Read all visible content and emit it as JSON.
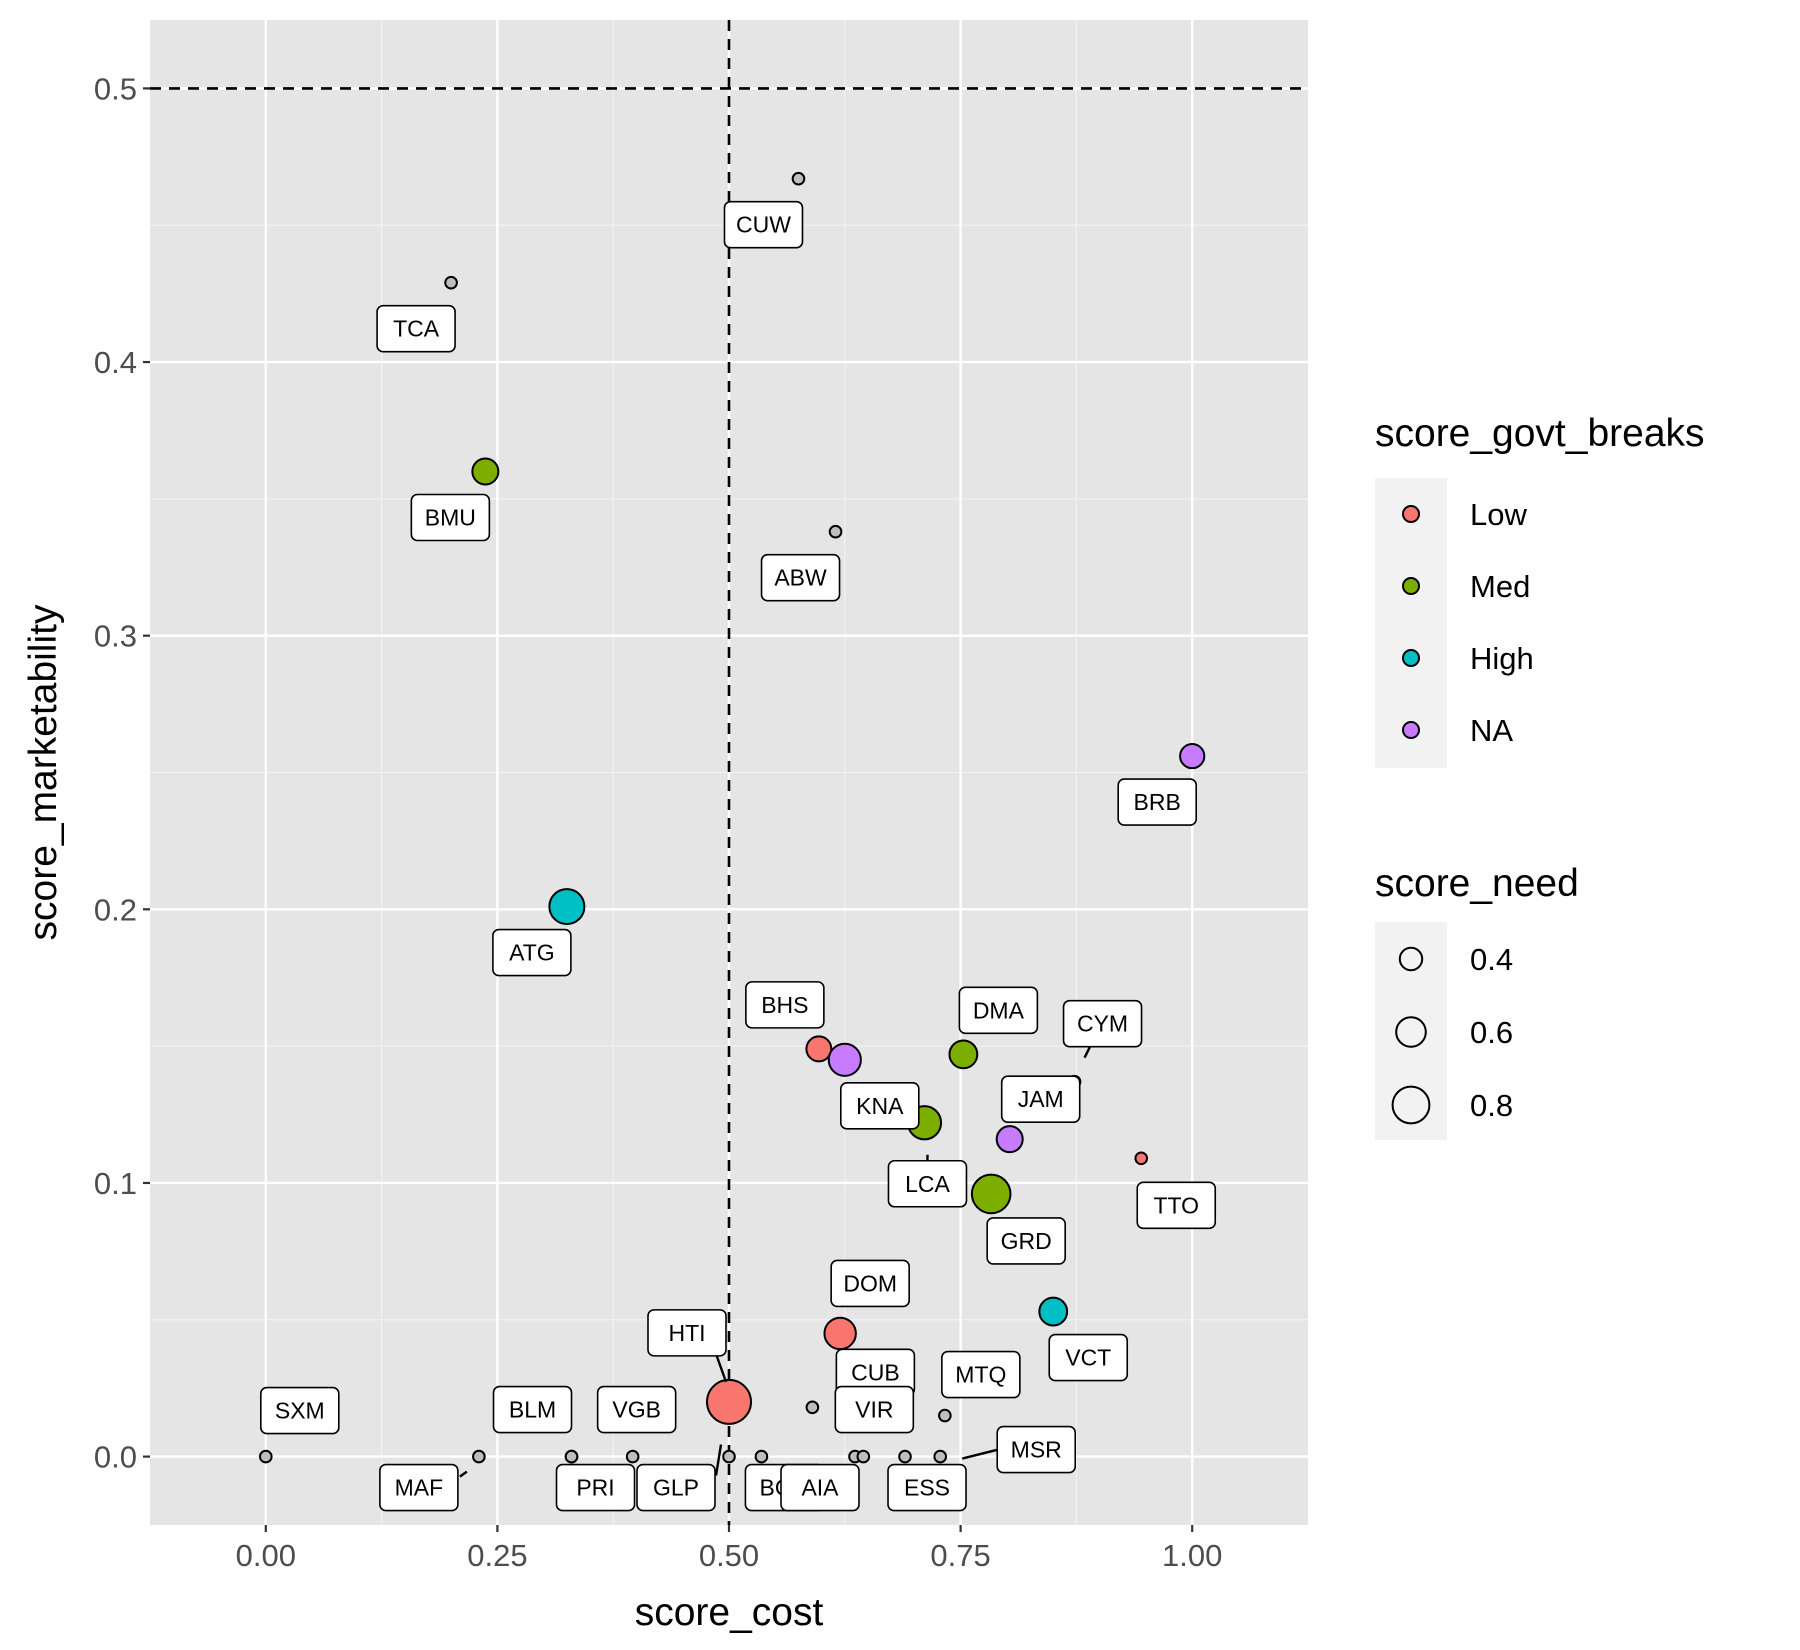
{
  "chart_data": {
    "type": "scatter",
    "xlabel": "score_cost",
    "ylabel": "score_marketability",
    "xlim": [
      -0.125,
      1.125
    ],
    "ylim": [
      -0.025,
      0.525
    ],
    "x_ticks": [
      "0.00",
      "0.25",
      "0.50",
      "0.75",
      "1.00"
    ],
    "x_tick_values": [
      0,
      0.25,
      0.5,
      0.75,
      1.0
    ],
    "y_ticks": [
      "0.0",
      "0.1",
      "0.2",
      "0.3",
      "0.4",
      "0.5"
    ],
    "y_tick_values": [
      0,
      0.1,
      0.2,
      0.3,
      0.4,
      0.5
    ],
    "grid": true,
    "reference_lines": {
      "x": 0.5,
      "y": 0.5,
      "style": "dashed"
    },
    "colors": {
      "Low": "#F8766D",
      "Med": "#7CAE00",
      "High": "#00BFC4",
      "NA": "#C77CFF",
      "missing": "#BEBEBE",
      "panel": "#E5E5E5"
    },
    "legend": {
      "placement": "right",
      "color_title": "score_govt_breaks",
      "color_items": [
        "Low",
        "Med",
        "High",
        "NA"
      ],
      "size_title": "score_need",
      "size_items": [
        {
          "label": "0.4",
          "value": 0.4
        },
        {
          "label": "0.6",
          "value": 0.6
        },
        {
          "label": "0.8",
          "value": 0.8
        }
      ]
    },
    "points": [
      {
        "label": "CUW",
        "x": 0.575,
        "y": 0.467,
        "group": null,
        "need": 0.1
      },
      {
        "label": "TCA",
        "x": 0.2,
        "y": 0.429,
        "group": null,
        "need": 0.1
      },
      {
        "label": "BMU",
        "x": 0.237,
        "y": 0.36,
        "group": "Med",
        "need": 0.5
      },
      {
        "label": "ABW",
        "x": 0.615,
        "y": 0.338,
        "group": null,
        "need": 0.1
      },
      {
        "label": "BRB",
        "x": 1.0,
        "y": 0.256,
        "group": "NA",
        "need": 0.45
      },
      {
        "label": "ATG",
        "x": 0.325,
        "y": 0.201,
        "group": "High",
        "need": 0.75
      },
      {
        "label": "BHS",
        "x": 0.597,
        "y": 0.149,
        "group": "Low",
        "need": 0.47
      },
      {
        "label": "KNA",
        "x": 0.625,
        "y": 0.145,
        "group": "NA",
        "need": 0.67
      },
      {
        "label": "DMA",
        "x": 0.753,
        "y": 0.147,
        "group": "Med",
        "need": 0.55
      },
      {
        "label": "CYM",
        "x": 0.873,
        "y": 0.137,
        "group": null,
        "need": 0.1
      },
      {
        "label": "LCA",
        "x": 0.711,
        "y": 0.122,
        "group": "Med",
        "need": 0.7
      },
      {
        "label": "JAM",
        "x": 0.803,
        "y": 0.116,
        "group": "NA",
        "need": 0.5
      },
      {
        "label": "TTO",
        "x": 0.945,
        "y": 0.109,
        "group": "Low",
        "need": 0.1
      },
      {
        "label": "GRD",
        "x": 0.783,
        "y": 0.096,
        "group": "Med",
        "need": 0.85
      },
      {
        "label": "VCT",
        "x": 0.85,
        "y": 0.053,
        "group": "High",
        "need": 0.55
      },
      {
        "label": "DOM",
        "x": 0.62,
        "y": 0.045,
        "group": "Low",
        "need": 0.65
      },
      {
        "label": "HTI",
        "x": 0.5,
        "y": 0.02,
        "group": "Low",
        "need": 1.0
      },
      {
        "label": "CUB",
        "x": 0.59,
        "y": 0.018,
        "group": null,
        "need": 0.1
      },
      {
        "label": "MTQ",
        "x": 0.733,
        "y": 0.015,
        "group": null,
        "need": 0.1
      },
      {
        "label": "SXM",
        "x": 0.0,
        "y": 0.0,
        "group": null,
        "need": 0.1
      },
      {
        "label": "MAF",
        "x": 0.23,
        "y": 0.0,
        "group": null,
        "need": 0.1
      },
      {
        "label": "BLM",
        "x": 0.33,
        "y": 0.0,
        "group": null,
        "need": 0.1
      },
      {
        "label": "PRI",
        "x": 0.33,
        "y": 0.0,
        "group": null,
        "need": 0.1
      },
      {
        "label": "VGB",
        "x": 0.396,
        "y": 0.0,
        "group": null,
        "need": 0.1
      },
      {
        "label": "GLP",
        "x": 0.5,
        "y": 0.0,
        "group": null,
        "need": 0.1
      },
      {
        "label": "BON",
        "x": 0.535,
        "y": 0.0,
        "group": null,
        "need": 0.1
      },
      {
        "label": "AIA",
        "x": 0.636,
        "y": 0.0,
        "group": null,
        "need": 0.1
      },
      {
        "label": "VIR",
        "x": 0.645,
        "y": 0.0,
        "group": null,
        "need": 0.1
      },
      {
        "label": "ESS",
        "x": 0.69,
        "y": 0.0,
        "group": null,
        "need": 0.1
      },
      {
        "label": "MSR",
        "x": 0.728,
        "y": 0.0,
        "group": null,
        "need": 0.1
      }
    ]
  }
}
